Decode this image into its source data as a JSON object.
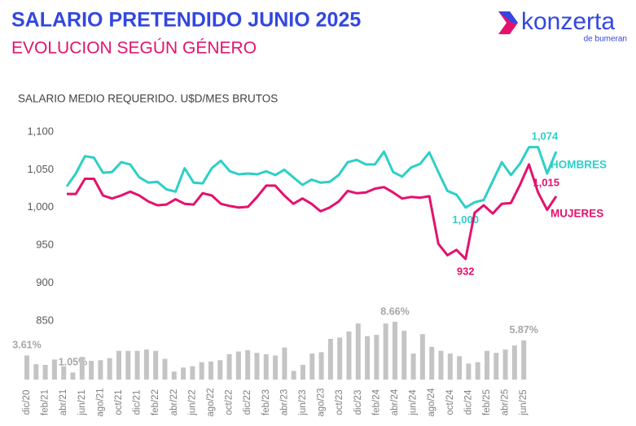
{
  "logo": {
    "name": "konzerta",
    "tagline": "de bumeran"
  },
  "chart_data": [
    {
      "type": "line",
      "title": "SALARIO PRETENDIDO JUNIO 2025",
      "subtitle": "EVOLUCION SEGÚN GÉNERO",
      "y_axis_label": "SALARIO MEDIO REQUERIDO. U$D/MES BRUTOS",
      "ylim": [
        850,
        1100
      ],
      "yticks": [
        {
          "value": 1100,
          "label": "1,100"
        },
        {
          "value": 1050,
          "label": "1,050"
        },
        {
          "value": 1000,
          "label": "1,000"
        },
        950,
        900,
        850
      ],
      "series": [
        {
          "name": "HOMBRES",
          "color": "#2dcfc8",
          "values": [
            1028,
            1045,
            1068,
            1066,
            1046,
            1047,
            1060,
            1057,
            1040,
            1033,
            1034,
            1024,
            1021,
            1052,
            1033,
            1032,
            1052,
            1062,
            1048,
            1044,
            1045,
            1044,
            1048,
            1043,
            1050,
            1040,
            1030,
            1037,
            1033,
            1034,
            1043,
            1060,
            1063,
            1057,
            1057,
            1074,
            1047,
            1041,
            1053,
            1058,
            1073,
            1047,
            1022,
            1017,
            1000,
            1007,
            1010,
            1035,
            1060,
            1043,
            1058,
            1080,
            1080,
            1045,
            1074
          ],
          "value_labels": [
            null,
            null,
            null,
            null,
            null,
            null,
            null,
            null,
            null,
            null,
            null,
            null,
            null,
            null,
            null,
            null,
            null,
            null,
            null,
            null,
            null,
            null,
            null,
            null,
            null,
            null,
            null,
            null,
            null,
            null,
            null,
            null,
            null,
            null,
            null,
            null,
            null,
            null,
            null,
            null,
            null,
            null,
            null,
            null,
            "1,000",
            null,
            null,
            null,
            null,
            null,
            null,
            null,
            null,
            null,
            "1,074"
          ]
        },
        {
          "name": "MUJERES",
          "color": "#e3126e",
          "values": [
            1018,
            1018,
            1038,
            1038,
            1016,
            1012,
            1016,
            1021,
            1016,
            1008,
            1003,
            1004,
            1011,
            1005,
            1004,
            1019,
            1016,
            1005,
            1002,
            1000,
            1001,
            1014,
            1029,
            1029,
            1016,
            1005,
            1012,
            1005,
            995,
            1000,
            1008,
            1022,
            1019,
            1020,
            1025,
            1027,
            1020,
            1012,
            1014,
            1013,
            1015,
            952,
            937,
            944,
            932,
            993,
            1003,
            992,
            1005,
            1006,
            1030,
            1057,
            1020,
            997,
            1015
          ],
          "value_labels": [
            null,
            null,
            null,
            null,
            null,
            null,
            null,
            null,
            null,
            null,
            null,
            null,
            null,
            null,
            null,
            null,
            null,
            null,
            null,
            null,
            null,
            null,
            null,
            null,
            null,
            null,
            null,
            null,
            null,
            null,
            null,
            null,
            null,
            null,
            null,
            null,
            null,
            null,
            null,
            null,
            null,
            null,
            null,
            null,
            "932",
            null,
            null,
            null,
            null,
            null,
            null,
            null,
            null,
            null,
            "1,015"
          ]
        }
      ]
    },
    {
      "type": "bar",
      "color": "#c4c4c4",
      "categories": [
        "dic/20",
        null,
        "feb/21",
        null,
        "abr/21",
        null,
        "jun/21",
        null,
        "ago/21",
        null,
        "oct/21",
        null,
        "dic/21",
        null,
        "feb/22",
        null,
        "abr/22",
        null,
        "jun/22",
        null,
        "ago/22",
        null,
        "oct/22",
        null,
        "dic/22",
        null,
        "feb/23",
        null,
        "abr/23",
        null,
        "jun/23",
        null,
        "ago/23",
        null,
        "oct/23",
        null,
        "dic/23",
        null,
        "feb/24",
        null,
        "abr/24",
        null,
        "jun/24",
        null,
        "ago/24",
        null,
        "oct/24",
        null,
        "dic/24",
        null,
        "feb/25",
        null,
        "abr/25",
        null,
        "jun/25"
      ],
      "values": [
        3.61,
        2.3,
        2.2,
        3.0,
        2.0,
        1.05,
        3.4,
        2.8,
        2.9,
        3.2,
        4.3,
        4.3,
        4.3,
        4.5,
        4.3,
        3.1,
        1.2,
        1.8,
        2.0,
        2.6,
        2.7,
        2.9,
        3.8,
        4.2,
        4.4,
        4.0,
        3.8,
        3.6,
        4.8,
        1.3,
        2.2,
        3.9,
        4.1,
        6.1,
        6.3,
        7.2,
        8.4,
        6.5,
        6.7,
        8.4,
        8.66,
        7.3,
        3.9,
        6.8,
        4.9,
        4.3,
        3.9,
        3.5,
        2.4,
        2.6,
        4.3,
        4.0,
        4.5,
        5.1,
        5.87
      ],
      "value_labels": [
        "3.61%",
        null,
        null,
        null,
        null,
        "1.05%",
        null,
        null,
        null,
        null,
        null,
        null,
        null,
        null,
        null,
        null,
        null,
        null,
        null,
        null,
        null,
        null,
        null,
        null,
        null,
        null,
        null,
        null,
        null,
        null,
        null,
        null,
        null,
        null,
        null,
        null,
        null,
        null,
        null,
        null,
        "8.66%",
        null,
        null,
        null,
        null,
        null,
        null,
        null,
        null,
        null,
        null,
        null,
        null,
        null,
        "5.87%"
      ]
    }
  ]
}
